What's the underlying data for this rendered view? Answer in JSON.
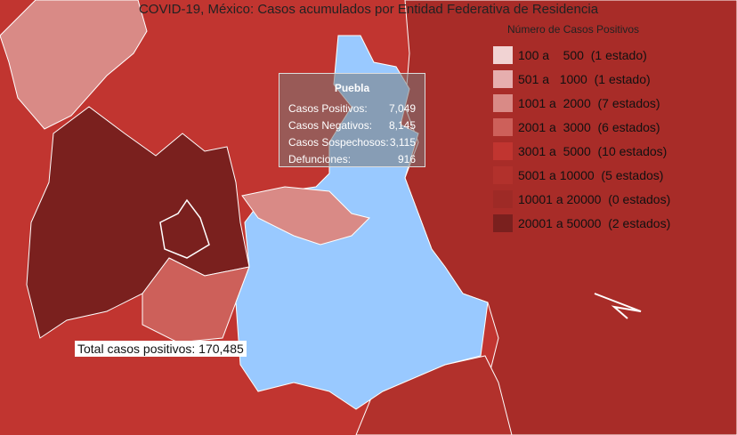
{
  "title": "COVID-19, México: Casos acumulados por Entidad Federativa de Residencia",
  "legend": {
    "title": "Número de Casos Positivos",
    "items": [
      {
        "range": "100 a    500  (1 estado)",
        "color": "#f1d3d3"
      },
      {
        "range": "501 a   1000  (1 estado)",
        "color": "#e6aeae"
      },
      {
        "range": "1001 a  2000  (7 estados)",
        "color": "#d98a86"
      },
      {
        "range": "2001 a  3000  (6 estados)",
        "color": "#cd605a"
      },
      {
        "range": "3001 a  5000  (10 estados)",
        "color": "#c13530"
      },
      {
        "range": "5001 a 10000  (5 estados)",
        "color": "#b2312c"
      },
      {
        "range": "10001 a 20000  (0 estados)",
        "color": "#9e2a26"
      },
      {
        "range": "20001 a 50000  (2 estados)",
        "color": "#7a201e"
      }
    ]
  },
  "tooltip": {
    "title": "Puebla",
    "rows": [
      {
        "label": "Casos Positivos:",
        "value": "7,049"
      },
      {
        "label": "Casos Negativos:",
        "value": "8,145"
      },
      {
        "label": "Casos Sospechosos:",
        "value": "3,115"
      },
      {
        "label": "Defunciones:",
        "value": "916"
      }
    ]
  },
  "total": "Total casos positivos: 170,485",
  "colors": {
    "background_state": "#c13530",
    "veracruz": "#a82c28",
    "highlight_puebla": "#99c9ff",
    "tlaxcala": "#d98a86",
    "hidalgo_light": "#d98a86",
    "cdmx_edomex": "#7a201e",
    "morelos": "#cd605a",
    "border": "#ffffff"
  }
}
